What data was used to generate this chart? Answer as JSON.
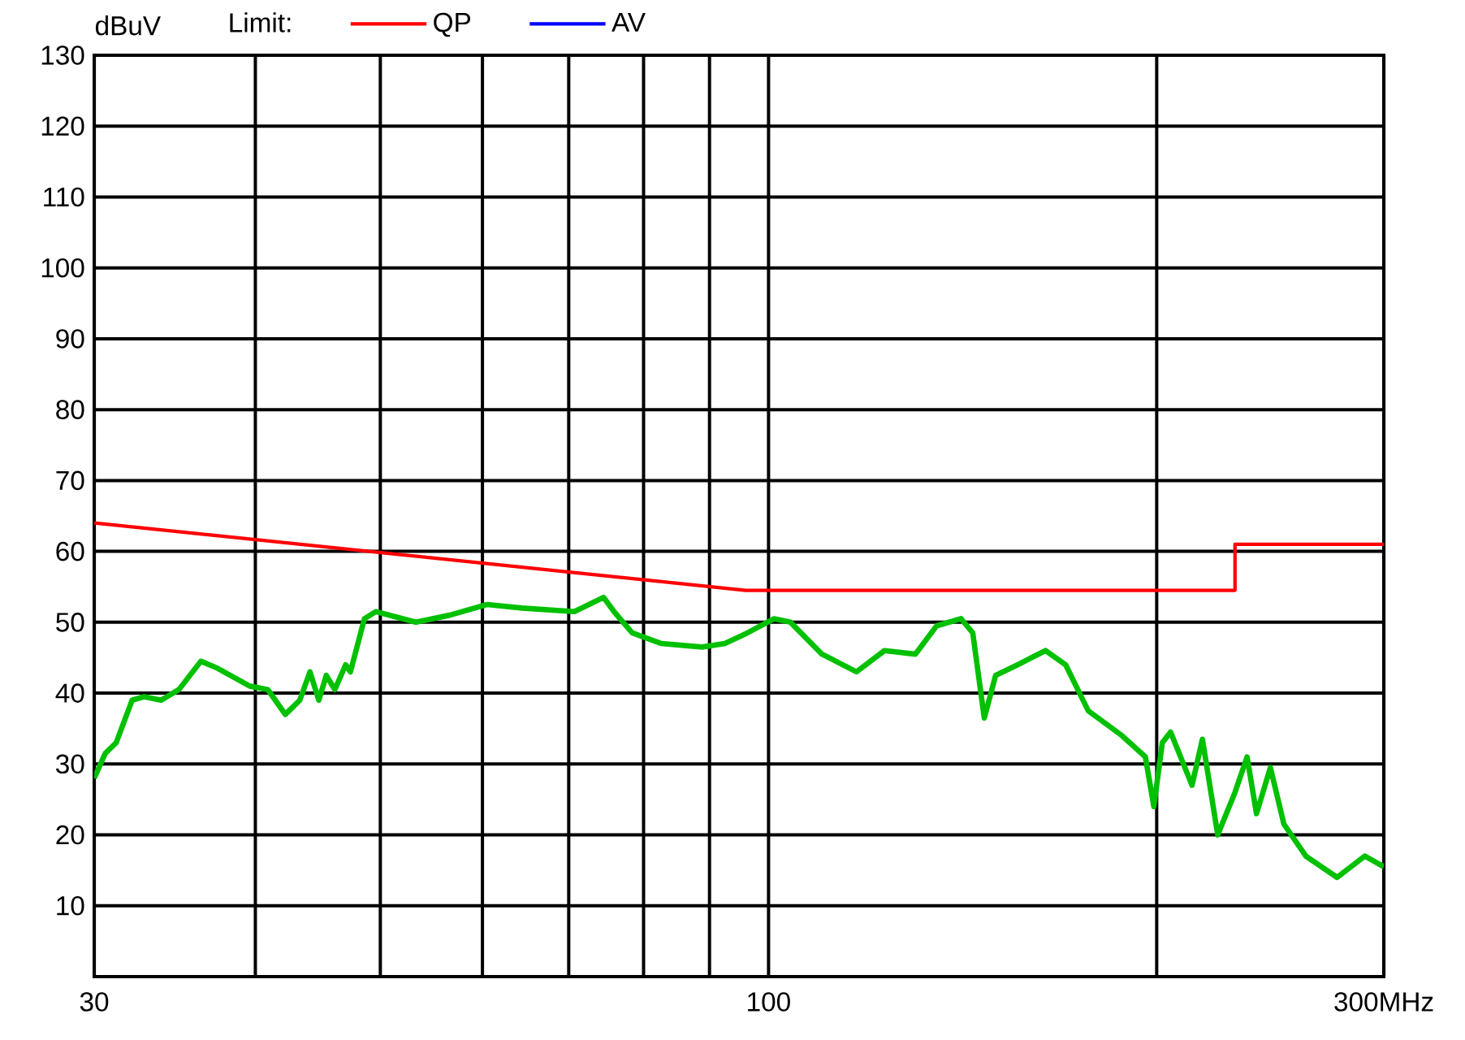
{
  "chart_data": {
    "type": "line",
    "ylabel": "dBuV",
    "legend_title": "Limit:",
    "log": "x",
    "grid": true,
    "legend": "top",
    "xlim": [
      30,
      300
    ],
    "ylim": [
      0,
      130
    ],
    "xticks": [
      30,
      {
        "value": 40,
        "label": null
      },
      {
        "value": 50,
        "label": null
      },
      {
        "value": 60,
        "label": null
      },
      {
        "value": 70,
        "label": null
      },
      {
        "value": 80,
        "label": null
      },
      {
        "value": 90,
        "label": null
      },
      100,
      {
        "value": 200,
        "label": null
      },
      {
        "value": 300,
        "label": "300MHz"
      }
    ],
    "yticks": [
      10,
      20,
      30,
      40,
      50,
      60,
      70,
      80,
      90,
      100,
      110,
      120,
      130
    ],
    "series": [
      {
        "color": "#00c000",
        "x": [
          30,
          30.6,
          31.2,
          32.1,
          32.8,
          33.8,
          34.9,
          36.3,
          37.4,
          39.6,
          40.9,
          42.2,
          43.3,
          44.1,
          44.8,
          45.4,
          46.1,
          47,
          47.4,
          48.6,
          49.6,
          53.3,
          56.6,
          60.5,
          64.4,
          70.7,
          74.5,
          75.9,
          78.4,
          82.6,
          88.8,
          92.5,
          96.3,
          101,
          104,
          110,
          117,
          123,
          130,
          135,
          141,
          144,
          147,
          150,
          156,
          164,
          170,
          177,
          188,
          196,
          199,
          202,
          205,
          213,
          217,
          223,
          230,
          235,
          239,
          245,
          251,
          261,
          276,
          290,
          300
        ],
        "values": [
          28,
          31.5,
          33,
          39,
          39.5,
          39,
          40.5,
          44.5,
          43.5,
          41,
          40.5,
          37,
          39,
          43,
          39,
          42.5,
          40.5,
          44,
          43,
          50.5,
          51.5,
          50,
          51,
          52.5,
          52,
          51.5,
          53.5,
          51.5,
          48.5,
          47,
          46.5,
          47,
          48.5,
          50.5,
          50,
          45.5,
          43,
          46,
          45.5,
          49.5,
          50.5,
          48.5,
          36.5,
          42.5,
          44,
          46,
          44,
          37.5,
          34,
          31,
          24,
          33,
          34.5,
          27,
          33.5,
          20,
          26,
          31,
          23,
          29.5,
          21.5,
          17,
          14,
          17,
          15.5
        ]
      },
      {
        "name": "QP",
        "color": "#ff0000",
        "x": [
          30,
          96,
          230,
          230,
          300
        ],
        "values": [
          64,
          54.5,
          54.5,
          61,
          61
        ]
      },
      {
        "name": "AV",
        "color": "#0000ff"
      }
    ]
  }
}
